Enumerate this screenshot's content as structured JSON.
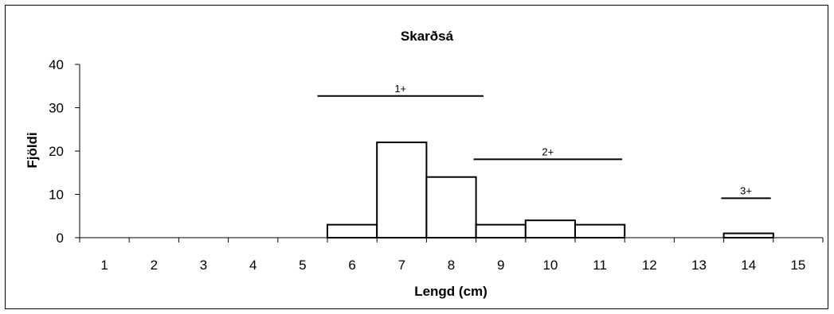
{
  "chart_data": {
    "type": "bar",
    "title": "Skarðsá",
    "xlabel": "Lengd (cm)",
    "ylabel": "Fjöldi",
    "categories": [
      "1",
      "2",
      "3",
      "4",
      "5",
      "6",
      "7",
      "8",
      "9",
      "10",
      "11",
      "12",
      "13",
      "14",
      "15"
    ],
    "values": [
      0,
      0,
      0,
      0,
      0,
      3,
      22,
      14,
      3,
      4,
      3,
      0,
      0,
      1,
      0
    ],
    "ylim": [
      0,
      40
    ],
    "yticks": [
      "0",
      "10",
      "20",
      "30",
      "40"
    ],
    "grid": false,
    "legend": "none",
    "bar_fill": "#ffffff",
    "bar_stroke": "#000000",
    "age_groups": [
      {
        "label": "1+",
        "from": 5.3,
        "to": 8.65,
        "y": 32.7
      },
      {
        "label": "2+",
        "from": 8.45,
        "to": 11.45,
        "y": 18.1
      },
      {
        "label": "3+",
        "from": 13.45,
        "to": 14.45,
        "y": 9.1
      }
    ]
  }
}
